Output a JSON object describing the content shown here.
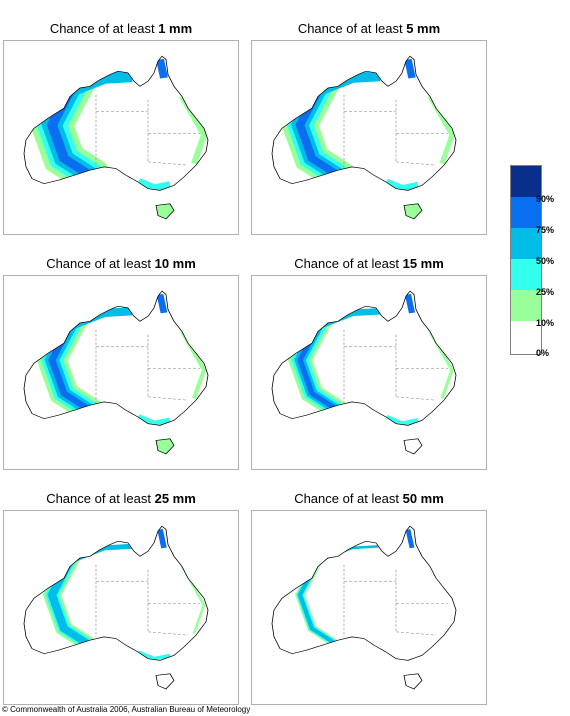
{
  "panels": [
    {
      "prefix": "Chance of at least ",
      "amount": "1 mm",
      "intensity": 1.0
    },
    {
      "prefix": "Chance of at least ",
      "amount": "5 mm",
      "intensity": 0.85
    },
    {
      "prefix": "Chance of at least ",
      "amount": "10 mm",
      "intensity": 0.7
    },
    {
      "prefix": "Chance of at least ",
      "amount": "15 mm",
      "intensity": 0.55
    },
    {
      "prefix": "Chance of at least ",
      "amount": "25 mm",
      "intensity": 0.42
    },
    {
      "prefix": "Chance of at least ",
      "amount": "50 mm",
      "intensity": 0.22
    }
  ],
  "legend": {
    "labels": [
      "90%",
      "75%",
      "50%",
      "25%",
      "10%",
      "0%"
    ],
    "colors": [
      "#08308a",
      "#0a6ef0",
      "#00bde8",
      "#33ffee",
      "#99ff99",
      "#ffffff"
    ]
  },
  "colors": {
    "coast": "#000000",
    "state_border": "#808080"
  },
  "copyright": "© Commonwealth of Australia 2006, Australian Bureau of Meteorology"
}
